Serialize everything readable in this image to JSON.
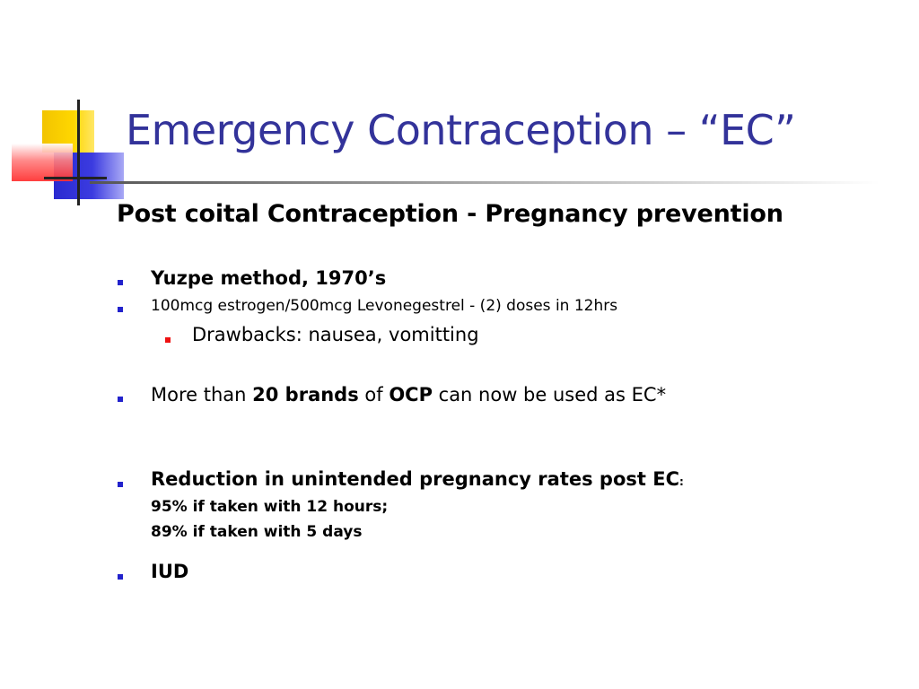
{
  "slide": {
    "title": "Emergency Contraception – “EC”",
    "subtitle": "Post coital Contraception - Pregnancy prevention",
    "bullets": {
      "yuzpe": "Yuzpe method, 1970’s",
      "dose": "100mcg estrogen/500mcg Levonegestrel - (2) doses in 12hrs",
      "drawbacks": "Drawbacks: nausea, vomitting",
      "brands": {
        "pre": "More than ",
        "bold1": "20 brands",
        "mid": " of ",
        "bold2": "OCP",
        "post": " can now be used as EC*"
      },
      "reduction": {
        "main": "Reduction in unintended pregnancy rates post EC",
        "colon": ":",
        "line2": "95% if taken with 12 hours;",
        "line3": "89% if taken with 5 days"
      },
      "iud": "IUD"
    },
    "colors": {
      "title": "#33339a",
      "bullet_level1": "#2222cc",
      "bullet_level2": "#ee1111"
    }
  }
}
